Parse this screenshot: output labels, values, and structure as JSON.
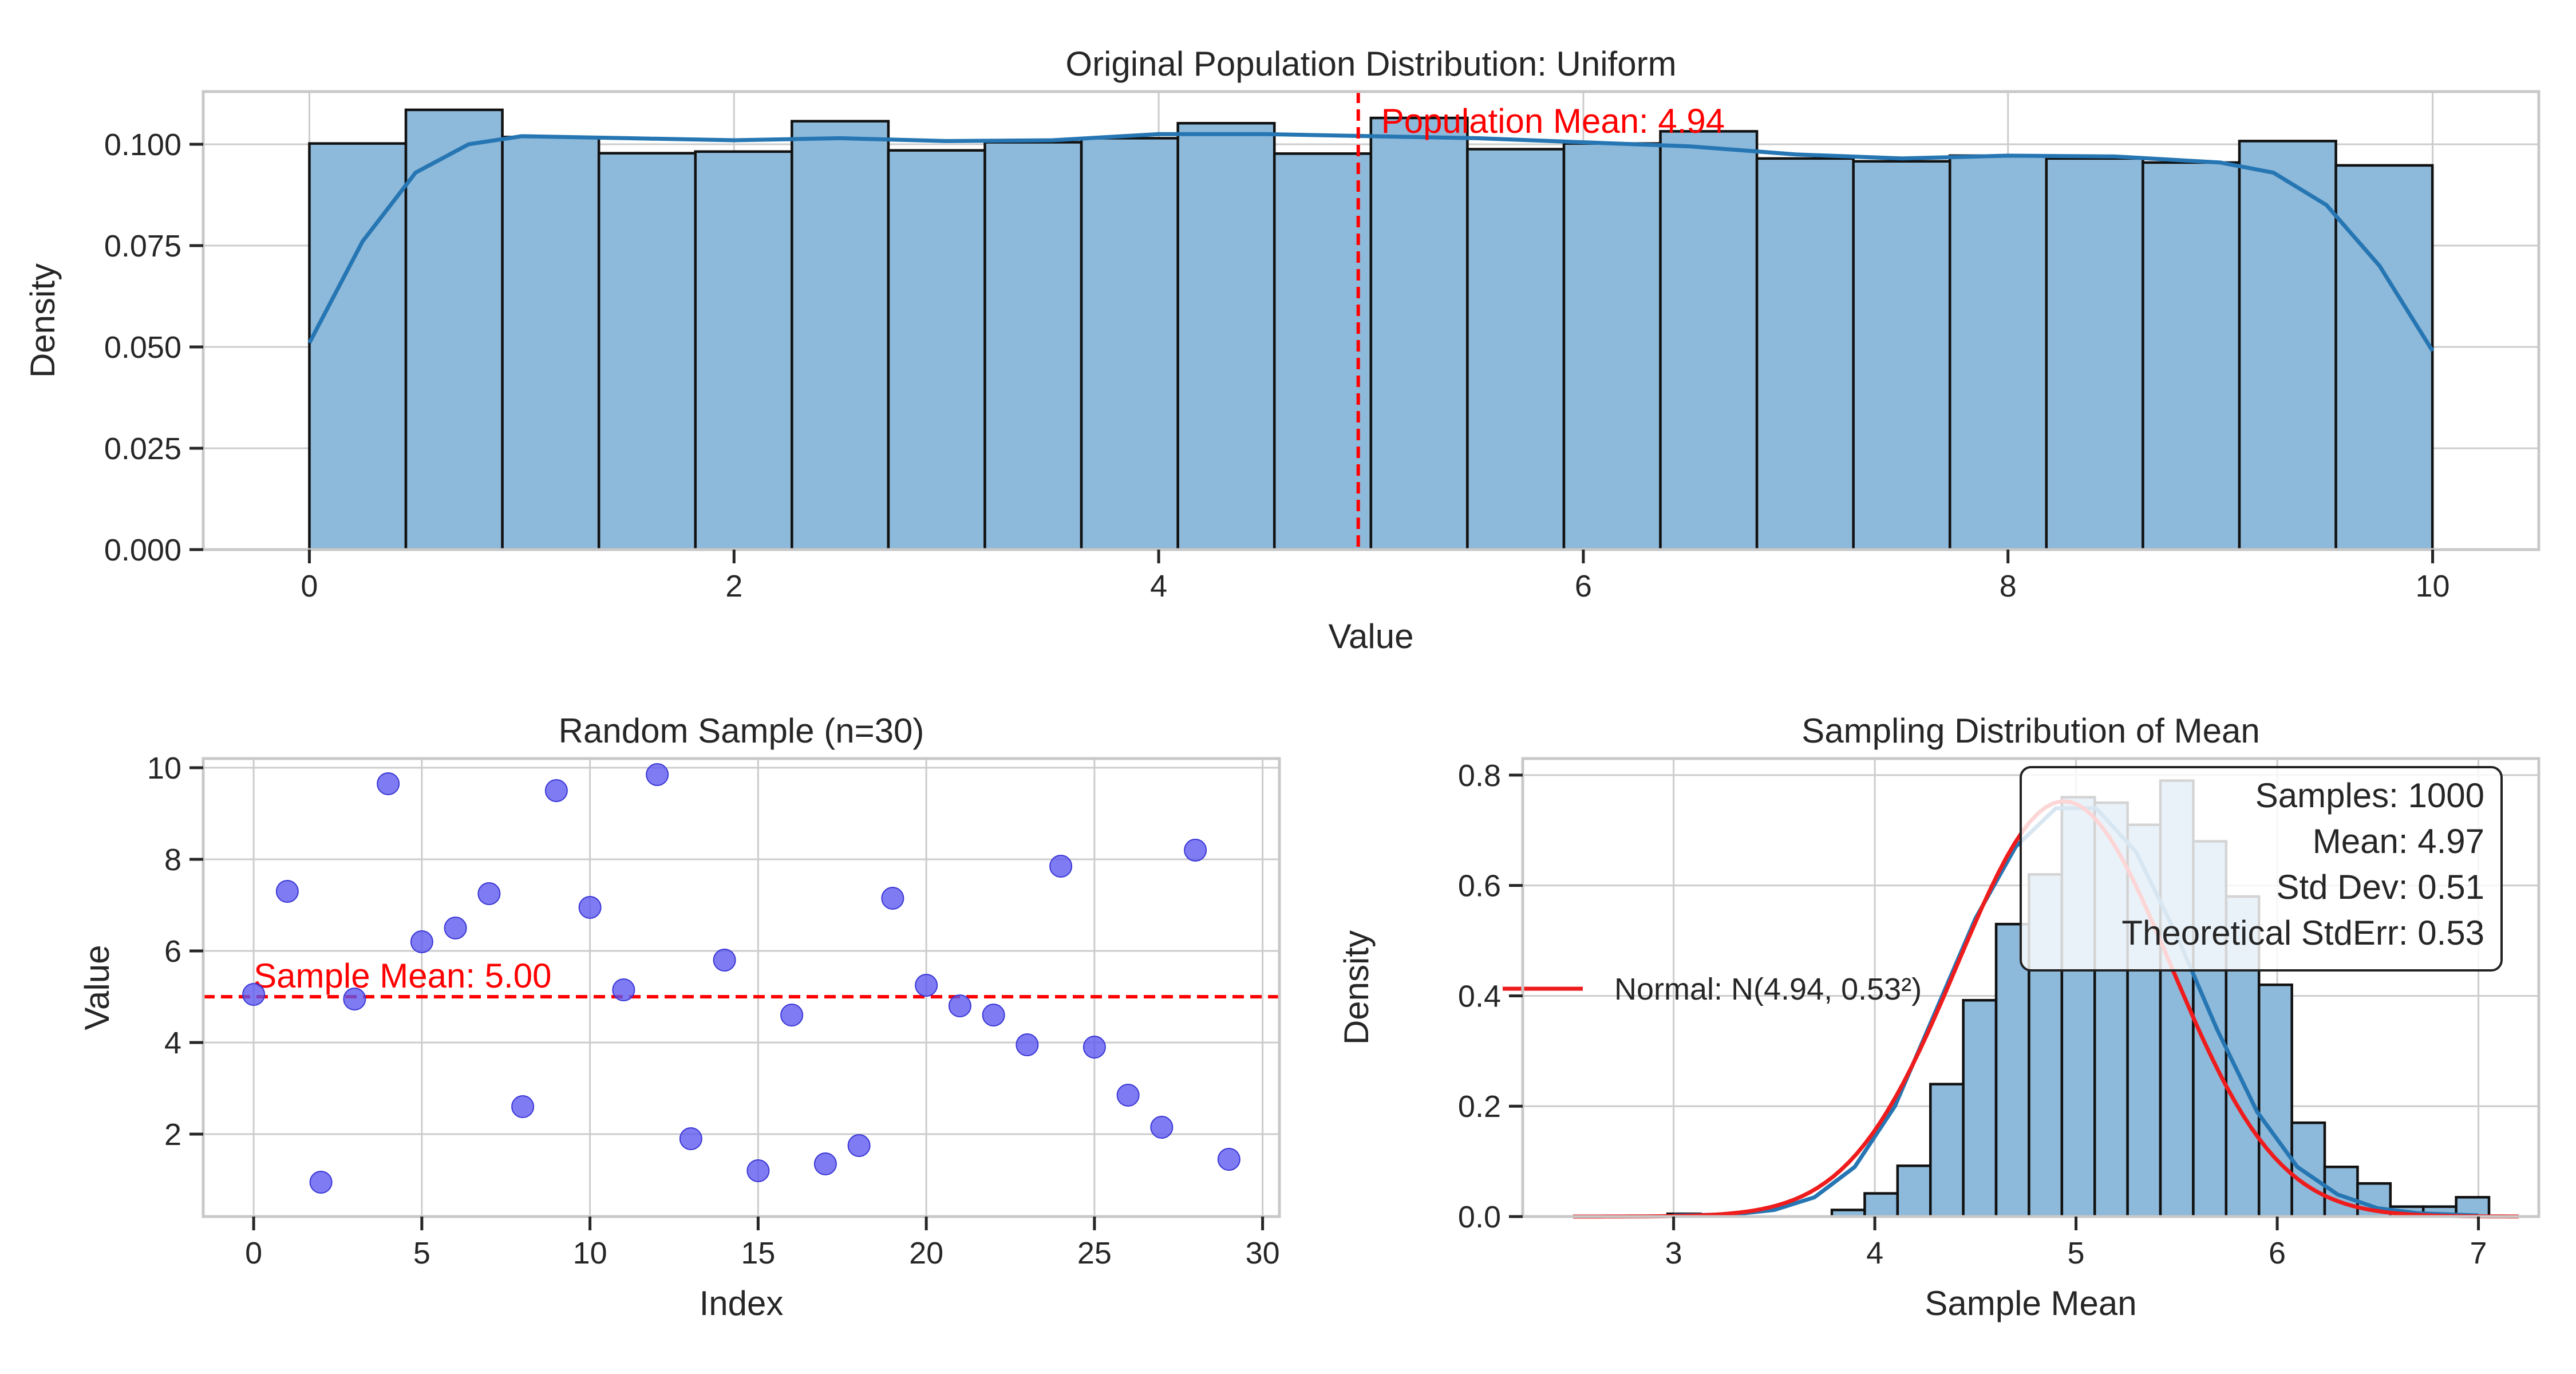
{
  "chart_data": [
    {
      "type": "bar",
      "title": "Original Population Distribution: Uniform",
      "xlabel": "Value",
      "ylabel": "Density",
      "xlim": [
        -0.5,
        10.5
      ],
      "ylim": [
        0,
        0.113
      ],
      "xticks": [
        0,
        2,
        4,
        6,
        8,
        10
      ],
      "xtick_labels": [
        "0",
        "2",
        "4",
        "6",
        "8",
        "10"
      ],
      "yticks": [
        0,
        0.025,
        0.05,
        0.075,
        0.1
      ],
      "ytick_labels": [
        "0.000",
        "0.025",
        "0.050",
        "0.075",
        "0.100"
      ],
      "grid": true,
      "bins": {
        "start": 0,
        "width": 0.4545,
        "values": [
          0.1002,
          0.1085,
          0.1018,
          0.0978,
          0.0982,
          0.1057,
          0.0985,
          0.1005,
          0.1015,
          0.1052,
          0.0977,
          0.1065,
          0.0988,
          0.1002,
          0.1032,
          0.0965,
          0.0958,
          0.0972,
          0.0965,
          0.0955,
          0.1008,
          0.0948
        ]
      },
      "kde": {
        "x": [
          0,
          0.25,
          0.5,
          0.75,
          1,
          1.5,
          2,
          2.5,
          3,
          3.5,
          4,
          4.5,
          5,
          5.5,
          6,
          6.5,
          7,
          7.5,
          8,
          8.5,
          9,
          9.25,
          9.5,
          9.75,
          10
        ],
        "y": [
          0.051,
          0.076,
          0.093,
          0.1,
          0.102,
          0.1015,
          0.101,
          0.1015,
          0.1008,
          0.101,
          0.1025,
          0.1025,
          0.102,
          0.1015,
          0.1005,
          0.0995,
          0.0975,
          0.0965,
          0.0972,
          0.097,
          0.0955,
          0.093,
          0.085,
          0.07,
          0.049
        ]
      },
      "mean_line": {
        "x": 4.94,
        "label": "Population Mean: 4.94",
        "color": "#ff0000"
      },
      "bar_color": "#8db9da",
      "kde_color": "#2676b3"
    },
    {
      "type": "scatter",
      "title": "Random Sample (n=30)",
      "xlabel": "Index",
      "ylabel": "Value",
      "xlim": [
        -1.5,
        30.5
      ],
      "ylim": [
        0.2,
        10.2
      ],
      "xticks": [
        0,
        5,
        10,
        15,
        20,
        25,
        30
      ],
      "xtick_labels": [
        "0",
        "5",
        "10",
        "15",
        "20",
        "25",
        "30"
      ],
      "yticks": [
        2,
        4,
        6,
        8,
        10
      ],
      "ytick_labels": [
        "2",
        "4",
        "6",
        "8",
        "10"
      ],
      "grid": true,
      "x": [
        0,
        1,
        2,
        3,
        4,
        5,
        6,
        7,
        8,
        9,
        10,
        11,
        12,
        13,
        14,
        15,
        16,
        17,
        18,
        19,
        20,
        21,
        22,
        23,
        24,
        25,
        26,
        27,
        28,
        29
      ],
      "y": [
        5.05,
        7.3,
        0.95,
        4.95,
        9.65,
        6.2,
        6.5,
        7.25,
        2.6,
        9.5,
        6.95,
        5.15,
        9.85,
        1.9,
        5.8,
        1.2,
        4.6,
        1.35,
        1.75,
        7.15,
        5.25,
        4.8,
        4.6,
        3.95,
        7.85,
        3.9,
        2.85,
        2.15,
        8.2,
        1.45
      ],
      "mean_line": {
        "y": 5.0,
        "label": "Sample Mean: 5.00",
        "color": "#ff0000"
      },
      "point_color": "#5b57f0"
    },
    {
      "type": "bar",
      "title": "Sampling Distribution of Mean",
      "xlabel": "Sample Mean",
      "ylabel": "Density",
      "xlim": [
        2.25,
        7.3
      ],
      "ylim": [
        0,
        0.83
      ],
      "xticks": [
        3,
        4,
        5,
        6,
        7
      ],
      "xtick_labels": [
        "3",
        "4",
        "5",
        "6",
        "7"
      ],
      "yticks": [
        0,
        0.2,
        0.4,
        0.6,
        0.8
      ],
      "ytick_labels": [
        "0.0",
        "0.2",
        "0.4",
        "0.6",
        "0.8"
      ],
      "grid": true,
      "bins": {
        "start": 2.97,
        "width": 0.1633,
        "values": [
          0.005,
          0.0,
          0.0,
          0.0,
          0.0,
          0.012,
          0.042,
          0.092,
          0.24,
          0.392,
          0.53,
          0.62,
          0.76,
          0.75,
          0.71,
          0.79,
          0.68,
          0.58,
          0.42,
          0.17,
          0.09,
          0.06,
          0.018,
          0.018,
          0.035
        ]
      },
      "kde": {
        "x": [
          3.0,
          3.3,
          3.5,
          3.7,
          3.9,
          4.1,
          4.3,
          4.5,
          4.7,
          4.9,
          5.1,
          5.3,
          5.5,
          5.7,
          5.9,
          6.1,
          6.3,
          6.5,
          6.7,
          7.0
        ],
        "y": [
          0.002,
          0.004,
          0.012,
          0.035,
          0.09,
          0.2,
          0.37,
          0.54,
          0.67,
          0.74,
          0.74,
          0.66,
          0.51,
          0.34,
          0.19,
          0.09,
          0.04,
          0.015,
          0.006,
          0.002
        ]
      },
      "normal_fit": {
        "mean": 4.94,
        "sd": 0.53,
        "xrange": [
          2.5,
          7.2
        ],
        "label": "Normal: N(4.94, 0.53²)",
        "color": "#ee1c1c"
      },
      "stats": [
        "Samples: 1000",
        "Mean: 4.97",
        "Std Dev: 0.51",
        "Theoretical StdErr: 0.53"
      ],
      "legend_position": "center-left",
      "bar_color": "#8db9da",
      "kde_color": "#2676b3"
    }
  ]
}
